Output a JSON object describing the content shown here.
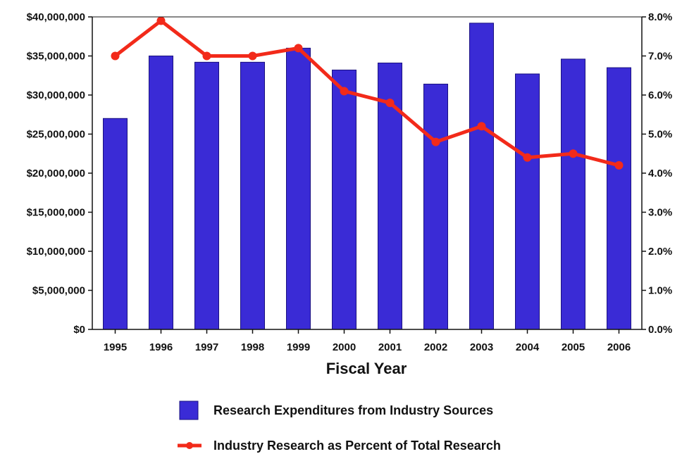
{
  "chart_data": {
    "type": "bar",
    "categories": [
      "1995",
      "1996",
      "1997",
      "1998",
      "1999",
      "2000",
      "2001",
      "2002",
      "2003",
      "2004",
      "2005",
      "2006"
    ],
    "series": [
      {
        "name": "Research Expenditures from Industry Sources",
        "type": "bar",
        "axis": "left",
        "color": "#3a2bd6",
        "values": [
          27000000,
          35000000,
          34200000,
          34200000,
          36000000,
          33200000,
          34100000,
          31400000,
          39200000,
          32700000,
          34600000,
          33500000
        ]
      },
      {
        "name": "Industry Research as Percent of Total Research",
        "type": "line",
        "axis": "right",
        "color": "#f22a1a",
        "values": [
          7.0,
          7.9,
          7.0,
          7.0,
          7.2,
          6.1,
          5.8,
          4.8,
          5.2,
          4.4,
          4.5,
          4.2
        ]
      }
    ],
    "xlabel": "Fiscal Year",
    "y_left": {
      "ylim": [
        0,
        40000000
      ],
      "ticks": [
        0,
        5000000,
        10000000,
        15000000,
        20000000,
        25000000,
        30000000,
        35000000,
        40000000
      ],
      "tick_labels": [
        "$0",
        "$5,000,000",
        "$10,000,000",
        "$15,000,000",
        "$20,000,000",
        "$25,000,000",
        "$30,000,000",
        "$35,000,000",
        "$40,000,000"
      ]
    },
    "y_right": {
      "ylim": [
        0,
        8
      ],
      "ticks": [
        0,
        1,
        2,
        3,
        4,
        5,
        6,
        7,
        8
      ],
      "tick_labels": [
        "0.0%",
        "1.0%",
        "2.0%",
        "3.0%",
        "4.0%",
        "5.0%",
        "6.0%",
        "7.0%",
        "8.0%"
      ]
    },
    "grid": false,
    "legend_position": "bottom-center"
  }
}
